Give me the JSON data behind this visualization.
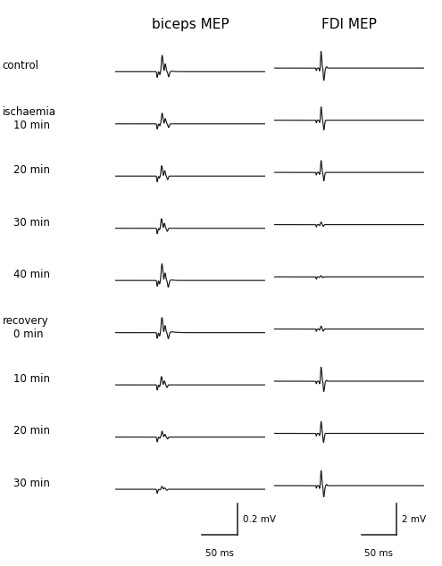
{
  "title_left": "biceps MEP",
  "title_right": "FDI MEP",
  "row_labels": [
    [
      "control",
      ""
    ],
    [
      "ischaemia",
      "10 min"
    ],
    [
      "",
      "20 min"
    ],
    [
      "",
      "30 min"
    ],
    [
      "",
      "40 min"
    ],
    [
      "recovery",
      "0 min"
    ],
    [
      "",
      "10 min"
    ],
    [
      "",
      "20 min"
    ],
    [
      "",
      "30 min"
    ]
  ],
  "scalebar_left_label": "0.2 mV",
  "scalebar_right_label": "2 mV",
  "scalebar_time_label": "50 ms",
  "background_color": "#ffffff",
  "line_color": "#1a1a1a",
  "label_fontsize": 8.5,
  "title_fontsize": 11
}
